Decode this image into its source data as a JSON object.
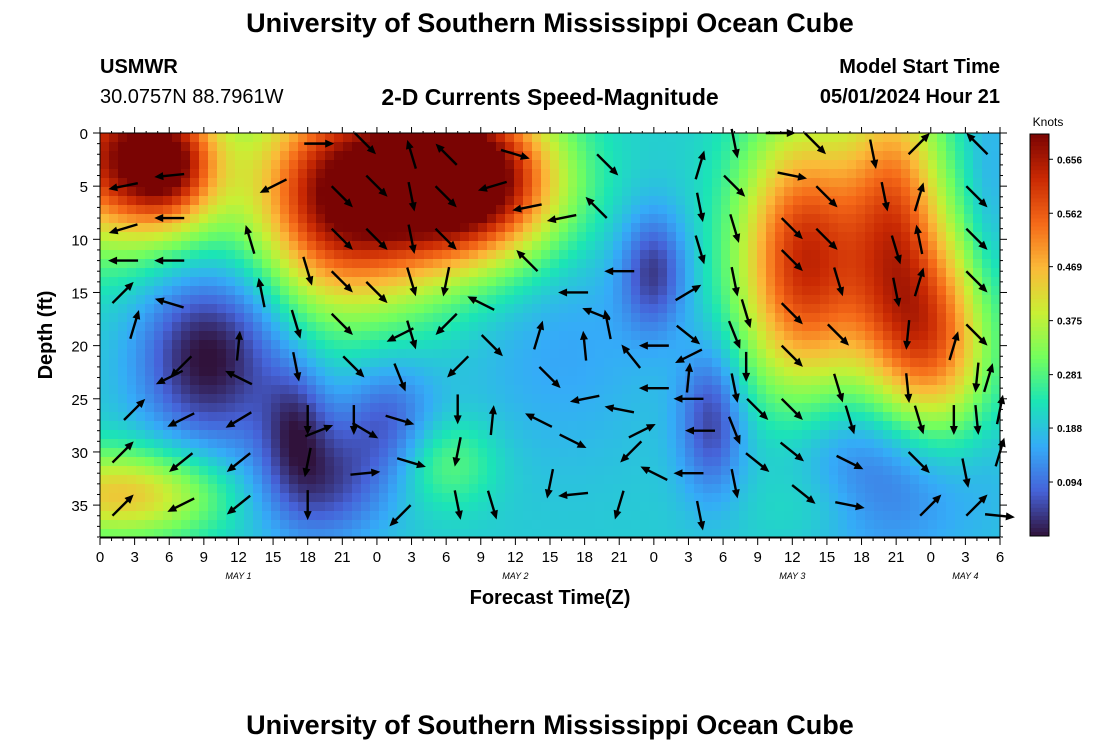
{
  "header": {
    "title": "University of Southern Mississippi Ocean Cube",
    "station": "USMWR",
    "coordinates": "30.0757N  88.7961W",
    "chart_title": "2-D Currents Speed-Magnitude",
    "model_start_label": "Model Start Time",
    "model_start_value": "05/01/2024 Hour 21"
  },
  "footer": {
    "title": "University of Southern Mississippi Ocean Cube"
  },
  "colors": {
    "scale": [
      "#30123b",
      "#4662d8",
      "#35abf8",
      "#1be5b5",
      "#74fe5d",
      "#c9ef34",
      "#fbb938",
      "#f56918",
      "#c92903",
      "#7a0403"
    ],
    "arrow": "#000000"
  },
  "chart_data": {
    "type": "heatmap",
    "xlabel": "Forecast Time(Z)",
    "ylabel": "Depth (ft)",
    "x_range_hours": [
      0,
      78
    ],
    "y_range_ft": [
      0,
      38
    ],
    "x_tick_labels": [
      "0",
      "3",
      "6",
      "9",
      "12",
      "15",
      "18",
      "21",
      "0",
      "3",
      "6",
      "9",
      "12",
      "15",
      "18",
      "21",
      "0",
      "3",
      "6",
      "9",
      "12",
      "15",
      "18",
      "21",
      "0",
      "3",
      "6"
    ],
    "y_ticks": [
      0,
      5,
      10,
      15,
      20,
      25,
      30,
      35
    ],
    "date_labels": [
      {
        "label": "MAY 1",
        "hour": 12
      },
      {
        "label": "MAY 2",
        "hour": 36
      },
      {
        "label": "MAY 3",
        "hour": 60
      },
      {
        "label": "MAY 4",
        "hour": 75
      }
    ],
    "colorbar": {
      "label": "Knots",
      "range": [
        0,
        0.7
      ],
      "ticks": [
        0.656,
        0.562,
        0.469,
        0.375,
        0.281,
        0.188,
        0.094
      ],
      "tick_labels": [
        "0.656",
        "0.562",
        "0.469",
        "0.375",
        "0.281",
        "0.188",
        "0.094"
      ]
    },
    "speed_features": [
      {
        "hour": 1,
        "depth": 2,
        "speed": 0.6,
        "sx": 5,
        "sy": 6
      },
      {
        "hour": 6,
        "depth": 3,
        "speed": 0.52,
        "sx": 3,
        "sy": 4
      },
      {
        "hour": 2,
        "depth": 34,
        "speed": 0.45,
        "sx": 6,
        "sy": 3
      },
      {
        "hour": 9,
        "depth": 21,
        "speed": 0.0,
        "sx": 4,
        "sy": 6
      },
      {
        "hour": 14,
        "depth": 15,
        "speed": 0.15,
        "sx": 3,
        "sy": 10
      },
      {
        "hour": 21,
        "depth": 6,
        "speed": 0.7,
        "sx": 6,
        "sy": 7
      },
      {
        "hour": 30,
        "depth": 3,
        "speed": 0.55,
        "sx": 5,
        "sy": 6
      },
      {
        "hour": 34,
        "depth": 5,
        "speed": 0.5,
        "sx": 5,
        "sy": 5
      },
      {
        "hour": 17,
        "depth": 27,
        "speed": 0.08,
        "sx": 2,
        "sy": 4
      },
      {
        "hour": 25,
        "depth": 27,
        "speed": 0.08,
        "sx": 3,
        "sy": 4
      },
      {
        "hour": 30,
        "depth": 31,
        "speed": 0.3,
        "sx": 3,
        "sy": 3
      },
      {
        "hour": 19,
        "depth": 33,
        "speed": 0.05,
        "sx": 4,
        "sy": 4
      },
      {
        "hour": 40,
        "depth": 20,
        "speed": 0.15,
        "sx": 6,
        "sy": 8
      },
      {
        "hour": 48,
        "depth": 13,
        "speed": 0.05,
        "sx": 2,
        "sy": 4
      },
      {
        "hour": 53,
        "depth": 27,
        "speed": 0.05,
        "sx": 2,
        "sy": 5
      },
      {
        "hour": 61,
        "depth": 12,
        "speed": 0.62,
        "sx": 4,
        "sy": 9
      },
      {
        "hour": 69,
        "depth": 7,
        "speed": 0.5,
        "sx": 3,
        "sy": 9
      },
      {
        "hour": 72,
        "depth": 20,
        "speed": 0.55,
        "sx": 4,
        "sy": 7
      },
      {
        "hour": 68,
        "depth": 31,
        "speed": 0.05,
        "sx": 6,
        "sy": 6
      },
      {
        "hour": 62,
        "depth": 35,
        "speed": 0.25,
        "sx": 4,
        "sy": 3
      },
      {
        "hour": 77,
        "depth": 10,
        "speed": 0.15,
        "sx": 1.5,
        "sy": 12
      }
    ],
    "arrows": [
      [
        2,
        5,
        -1,
        0.2
      ],
      [
        6,
        4,
        -1,
        0.1
      ],
      [
        2,
        9,
        -1,
        0.3
      ],
      [
        6,
        8,
        -1,
        0
      ],
      [
        2,
        12,
        -1,
        0
      ],
      [
        6,
        12,
        -1,
        0
      ],
      [
        2,
        15,
        1,
        -1
      ],
      [
        6,
        16,
        -1,
        -0.3
      ],
      [
        3,
        18,
        0.3,
        -1
      ],
      [
        7,
        22,
        -1,
        1
      ],
      [
        6,
        23,
        -1,
        0.5
      ],
      [
        3,
        26,
        1,
        -1
      ],
      [
        7,
        27,
        -1,
        0.5
      ],
      [
        2,
        30,
        1,
        -1
      ],
      [
        7,
        31,
        -1,
        0.8
      ],
      [
        2,
        35,
        1,
        -1
      ],
      [
        7,
        35,
        -1,
        0.5
      ],
      [
        12,
        23,
        -1,
        -0.5
      ],
      [
        12,
        27,
        -1,
        0.6
      ],
      [
        12,
        31,
        -1,
        0.8
      ],
      [
        12,
        35,
        -1,
        0.8
      ],
      [
        13,
        10,
        -0.3,
        -1
      ],
      [
        14,
        15,
        -0.2,
        -1
      ],
      [
        12,
        20,
        0.1,
        -1
      ],
      [
        15,
        5,
        -1,
        0.5
      ],
      [
        18,
        13,
        0.3,
        1
      ],
      [
        17,
        18,
        0.3,
        1
      ],
      [
        17,
        22,
        0.2,
        1
      ],
      [
        18,
        27,
        0,
        1
      ],
      [
        18,
        31,
        -0.2,
        1
      ],
      [
        18,
        35,
        0,
        1
      ],
      [
        19,
        28,
        1,
        -0.4
      ],
      [
        19,
        1,
        1,
        0
      ],
      [
        21,
        6,
        1,
        1
      ],
      [
        21,
        10,
        1,
        1
      ],
      [
        21,
        14,
        1,
        1
      ],
      [
        21,
        18,
        1,
        1
      ],
      [
        22,
        22,
        1,
        1
      ],
      [
        22,
        27,
        0,
        1
      ],
      [
        23,
        1,
        1,
        1
      ],
      [
        24,
        5,
        1,
        1
      ],
      [
        24,
        10,
        1,
        1
      ],
      [
        24,
        15,
        1,
        1
      ],
      [
        26,
        19,
        -1,
        0.5
      ],
      [
        23,
        28,
        1,
        0.6
      ],
      [
        23,
        32,
        1,
        -0.1
      ],
      [
        26,
        36,
        -1,
        1
      ],
      [
        27,
        2,
        -0.3,
        -1
      ],
      [
        27,
        6,
        0.2,
        1
      ],
      [
        27,
        10,
        0.2,
        1
      ],
      [
        27,
        14,
        0.3,
        1
      ],
      [
        27,
        19,
        0.3,
        1
      ],
      [
        26,
        23,
        0.4,
        1
      ],
      [
        26,
        27,
        1,
        0.3
      ],
      [
        27,
        31,
        1,
        0.3
      ],
      [
        30,
        2,
        -1,
        -1
      ],
      [
        30,
        6,
        1,
        1
      ],
      [
        30,
        10,
        1,
        1
      ],
      [
        30,
        14,
        -0.2,
        1
      ],
      [
        30,
        18,
        -1,
        1
      ],
      [
        31,
        22,
        -1,
        1
      ],
      [
        31,
        26,
        0,
        1
      ],
      [
        31,
        30,
        -0.2,
        1
      ],
      [
        31,
        35,
        0.2,
        1
      ],
      [
        34,
        5,
        -1,
        0.3
      ],
      [
        33,
        16,
        -1,
        -0.5
      ],
      [
        34,
        20,
        1,
        1
      ],
      [
        34,
        27,
        0.1,
        -1
      ],
      [
        34,
        35,
        0.3,
        1
      ],
      [
        36,
        2,
        1,
        0.3
      ],
      [
        37,
        7,
        -1,
        0.2
      ],
      [
        37,
        12,
        -1,
        -1
      ],
      [
        38,
        19,
        0.3,
        -1
      ],
      [
        39,
        23,
        1,
        1
      ],
      [
        38,
        27,
        -1,
        -0.5
      ],
      [
        39,
        33,
        -0.2,
        1
      ],
      [
        40,
        8,
        -1,
        0.2
      ],
      [
        41,
        15,
        -1,
        0
      ],
      [
        42,
        20,
        -0.1,
        -1
      ],
      [
        42,
        25,
        -1,
        0.2
      ],
      [
        41,
        29,
        1,
        0.5
      ],
      [
        41,
        34,
        -1,
        0.1
      ],
      [
        43,
        17,
        -1,
        -0.4
      ],
      [
        44,
        3,
        1,
        1
      ],
      [
        43,
        7,
        -1,
        -1
      ],
      [
        45,
        13,
        -1,
        0
      ],
      [
        44,
        18,
        -0.2,
        -1
      ],
      [
        46,
        21,
        -0.8,
        -1
      ],
      [
        45,
        26,
        -1,
        -0.2
      ],
      [
        46,
        30,
        -1,
        1
      ],
      [
        45,
        35,
        -0.3,
        1
      ],
      [
        47,
        28,
        1,
        -0.5
      ],
      [
        48,
        20,
        -1,
        0
      ],
      [
        48,
        24,
        -1,
        0
      ],
      [
        48,
        32,
        -1,
        -0.5
      ],
      [
        51,
        21,
        -1,
        0.5
      ],
      [
        51,
        25,
        -1,
        0
      ],
      [
        52,
        3,
        0.3,
        -1
      ],
      [
        52,
        7,
        0.2,
        1
      ],
      [
        52,
        11,
        0.3,
        1
      ],
      [
        51,
        15,
        1,
        -0.6
      ],
      [
        51,
        19,
        1,
        0.8
      ],
      [
        51,
        23,
        0.1,
        -1
      ],
      [
        52,
        28,
        -1,
        0
      ],
      [
        51,
        32,
        -1,
        0
      ],
      [
        52,
        36,
        0.2,
        1
      ],
      [
        55,
        1,
        0.2,
        1
      ],
      [
        55,
        5,
        1,
        1
      ],
      [
        55,
        9,
        0.3,
        1
      ],
      [
        55,
        14,
        0.2,
        1
      ],
      [
        55,
        19,
        0.4,
        1
      ],
      [
        55,
        24,
        0.2,
        1
      ],
      [
        55,
        28,
        0.4,
        1
      ],
      [
        55,
        33,
        0.2,
        1
      ],
      [
        56,
        17,
        0.3,
        1
      ],
      [
        56,
        22,
        0,
        1
      ],
      [
        57,
        26,
        1,
        1
      ],
      [
        57,
        31,
        1,
        0.8
      ],
      [
        59,
        0,
        1,
        0
      ],
      [
        60,
        4,
        1,
        0.2
      ],
      [
        60,
        9,
        1,
        1
      ],
      [
        60,
        12,
        1,
        1
      ],
      [
        60,
        17,
        1,
        1
      ],
      [
        60,
        21,
        1,
        1
      ],
      [
        60,
        26,
        1,
        1
      ],
      [
        60,
        30,
        1,
        0.8
      ],
      [
        61,
        34,
        1,
        0.8
      ],
      [
        62,
        1,
        1,
        1
      ],
      [
        63,
        6,
        1,
        1
      ],
      [
        63,
        10,
        1,
        1
      ],
      [
        64,
        14,
        0.3,
        1
      ],
      [
        64,
        19,
        1,
        1
      ],
      [
        64,
        24,
        0.3,
        1
      ],
      [
        65,
        27,
        0.3,
        1
      ],
      [
        65,
        31,
        1,
        0.5
      ],
      [
        65,
        35,
        1,
        0.2
      ],
      [
        67,
        2,
        0.2,
        1
      ],
      [
        68,
        6,
        0.2,
        1
      ],
      [
        69,
        11,
        0.3,
        1
      ],
      [
        69,
        15,
        0.2,
        1
      ],
      [
        70,
        19,
        -0.1,
        1
      ],
      [
        70,
        24,
        0.1,
        1
      ],
      [
        71,
        27,
        0.3,
        1
      ],
      [
        71,
        31,
        1,
        1
      ],
      [
        72,
        35,
        1,
        -1
      ],
      [
        71,
        1,
        1,
        -1
      ],
      [
        71,
        6,
        0.3,
        -1
      ],
      [
        71,
        10,
        -0.2,
        -1
      ],
      [
        71,
        14,
        0.3,
        -1
      ],
      [
        74,
        20,
        0.3,
        -1
      ],
      [
        74,
        27,
        0,
        1
      ],
      [
        75,
        32,
        0.2,
        1
      ],
      [
        76,
        1,
        -1,
        -1
      ],
      [
        76,
        6,
        1,
        1
      ],
      [
        76,
        10,
        1,
        1
      ],
      [
        76,
        14,
        1,
        1
      ],
      [
        76,
        19,
        1,
        1
      ],
      [
        76,
        23,
        -0.1,
        1
      ],
      [
        76,
        27,
        0.1,
        1
      ],
      [
        76,
        35,
        1,
        -1
      ],
      [
        77,
        23,
        0.3,
        -1
      ],
      [
        78,
        26,
        0.2,
        -1
      ],
      [
        78,
        30,
        0.3,
        -1
      ],
      [
        78,
        36,
        1,
        0.1
      ]
    ]
  }
}
